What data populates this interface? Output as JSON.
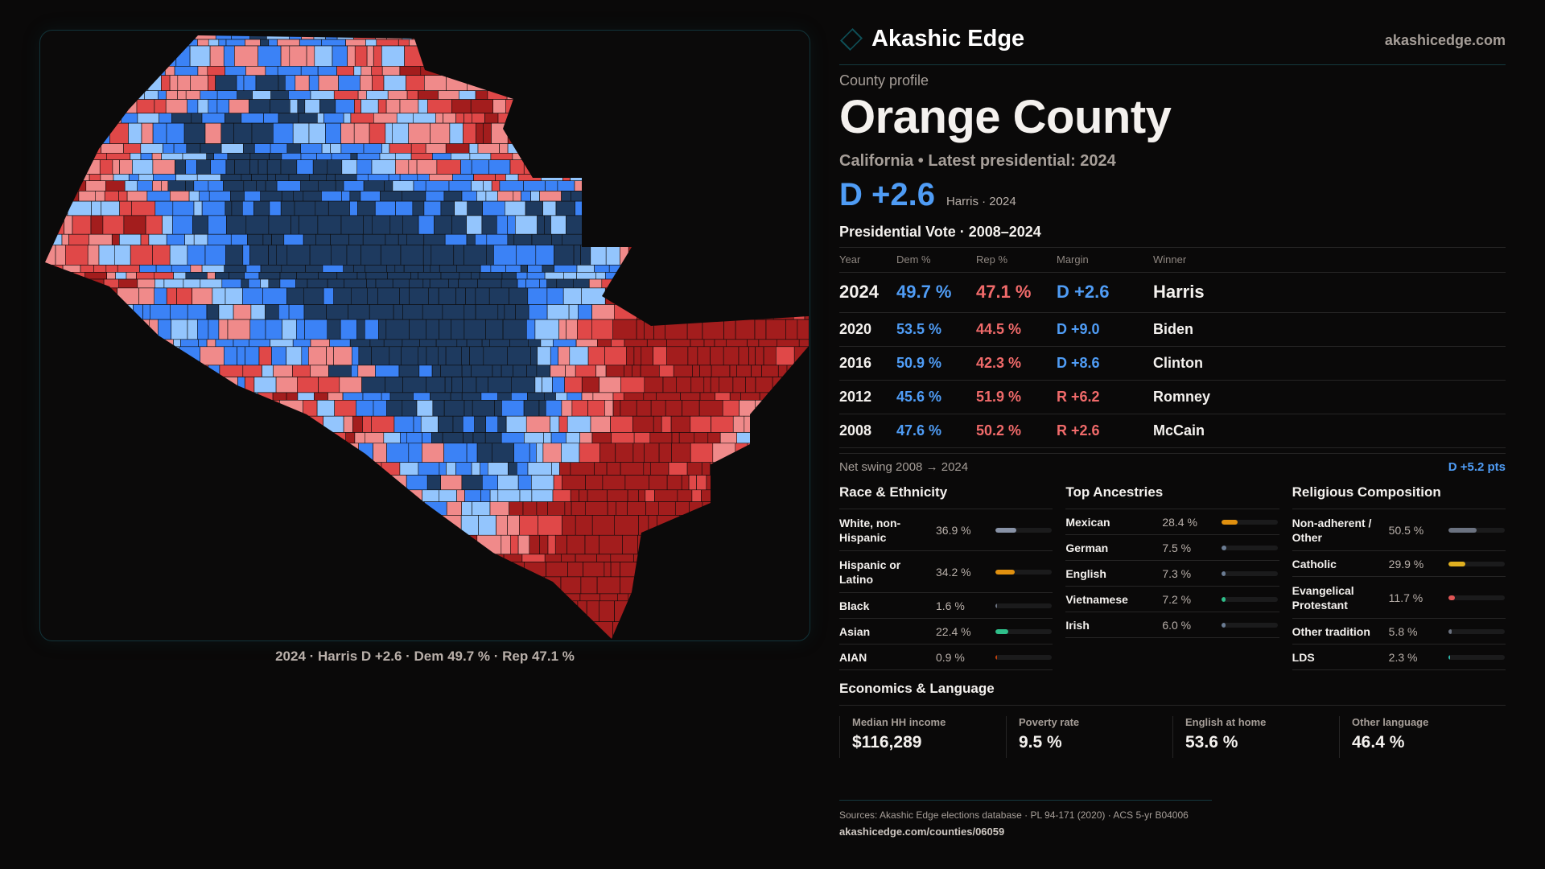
{
  "brand": {
    "name": "Akashic Edge",
    "site": "akashicedge.com",
    "logo_icon": "diamond-outline-icon"
  },
  "profile": {
    "kicker": "County profile",
    "title": "Orange County",
    "subtitle": "California • Latest presidential: 2024",
    "margin": "D +2.6",
    "margin_sub": "Harris · 2024"
  },
  "map": {
    "caption": "2024 · Harris D +2.6 · Dem 49.7 % · Rep 47.1 %",
    "colors": {
      "dem_strong": "#1e3a5f",
      "dem": "#3b82f6",
      "dem_lean": "#93c5fd",
      "rep_lean": "#f08a8a",
      "rep": "#e04848",
      "rep_strong": "#a31d1d"
    }
  },
  "presidential": {
    "title": "Presidential Vote · 2008–2024",
    "headers": [
      "Year",
      "Dem %",
      "Rep %",
      "Margin",
      "Winner"
    ],
    "rows": [
      {
        "year": "2024",
        "dem": "49.7 %",
        "rep": "47.1 %",
        "margin": "D +2.6",
        "party": "D",
        "winner": "Harris"
      },
      {
        "year": "2020",
        "dem": "53.5 %",
        "rep": "44.5 %",
        "margin": "D +9.0",
        "party": "D",
        "winner": "Biden"
      },
      {
        "year": "2016",
        "dem": "50.9 %",
        "rep": "42.3 %",
        "margin": "D +8.6",
        "party": "D",
        "winner": "Clinton"
      },
      {
        "year": "2012",
        "dem": "45.6 %",
        "rep": "51.9 %",
        "margin": "R +6.2",
        "party": "R",
        "winner": "Romney"
      },
      {
        "year": "2008",
        "dem": "47.6 %",
        "rep": "50.2 %",
        "margin": "R +2.6",
        "party": "R",
        "winner": "McCain"
      }
    ],
    "swing_label": "Net swing 2008 → 2024",
    "swing_value": "D +5.2 pts"
  },
  "sections": [
    {
      "title": "Race & Ethnicity",
      "items": [
        {
          "label": "White, non-Hispanic",
          "value": "36.9 %",
          "pct": 36.9,
          "color": "#8892a6"
        },
        {
          "label": "Hispanic or Latino",
          "value": "34.2 %",
          "pct": 34.2,
          "color": "#e0900f"
        },
        {
          "label": "Black",
          "value": "1.6 %",
          "pct": 1.6,
          "color": "#6b7280"
        },
        {
          "label": "Asian",
          "value": "22.4 %",
          "pct": 22.4,
          "color": "#2fbf8a"
        },
        {
          "label": "AIAN",
          "value": "0.9 %",
          "pct": 0.9,
          "color": "#c2410c"
        }
      ]
    },
    {
      "title": "Top Ancestries",
      "items": [
        {
          "label": "Mexican",
          "value": "28.4 %",
          "pct": 28.4,
          "color": "#e0900f"
        },
        {
          "label": "German",
          "value": "7.5 %",
          "pct": 7.5,
          "color": "#6b7c93"
        },
        {
          "label": "English",
          "value": "7.3 %",
          "pct": 7.3,
          "color": "#6b7c93"
        },
        {
          "label": "Vietnamese",
          "value": "7.2 %",
          "pct": 7.2,
          "color": "#2fbf8a"
        },
        {
          "label": "Irish",
          "value": "6.0 %",
          "pct": 6.0,
          "color": "#6b7c93"
        }
      ]
    },
    {
      "title": "Religious Composition",
      "items": [
        {
          "label": "Non-adherent / Other",
          "value": "50.5 %",
          "pct": 50.5,
          "color": "#6b7280"
        },
        {
          "label": "Catholic",
          "value": "29.9 %",
          "pct": 29.9,
          "color": "#e0b020"
        },
        {
          "label": "Evangelical Protestant",
          "value": "11.7 %",
          "pct": 11.7,
          "color": "#e05555"
        },
        {
          "label": "Other tradition",
          "value": "5.8 %",
          "pct": 5.8,
          "color": "#6b7280"
        },
        {
          "label": "LDS",
          "value": "2.3 %",
          "pct": 2.3,
          "color": "#2bb5a8"
        }
      ]
    }
  ],
  "economics": {
    "title": "Economics & Language",
    "stats": [
      {
        "label": "Median HH income",
        "value": "$116,289"
      },
      {
        "label": "Poverty rate",
        "value": "9.5 %"
      },
      {
        "label": "English at home",
        "value": "53.6 %"
      },
      {
        "label": "Other language",
        "value": "46.4 %"
      }
    ]
  },
  "footer": {
    "sources": "Sources: Akashic Edge elections database · PL 94-171 (2020) · ACS 5-yr B04006",
    "link": "akashicedge.com/counties/06059"
  }
}
